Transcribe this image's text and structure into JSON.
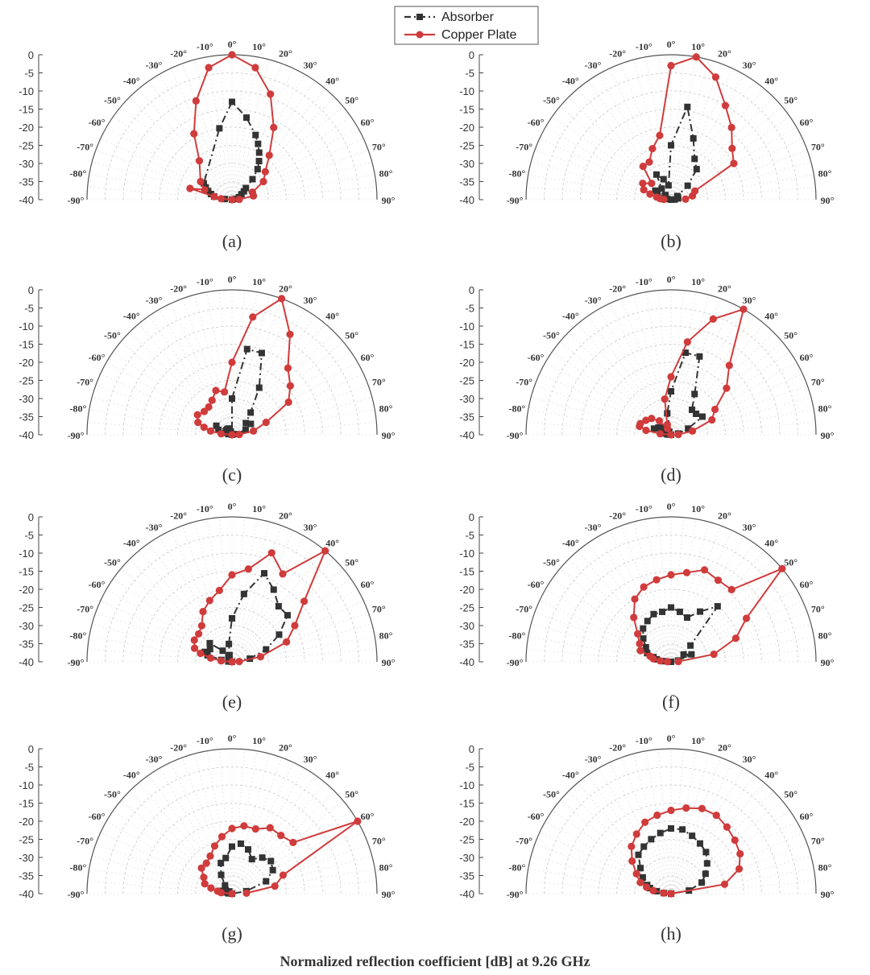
{
  "figure": {
    "caption": "Normalized reflection coefficient [dB] at 9.26 GHz"
  },
  "legend": {
    "items": [
      {
        "label": "Absorber",
        "color": "#333333",
        "marker": "square",
        "dash": "dashdot"
      },
      {
        "label": "Copper Plate",
        "color": "#d03b3b",
        "marker": "circle",
        "dash": "solid"
      }
    ]
  },
  "chart_data": {
    "type": "line",
    "coordinate_system": "polar",
    "theta_range_deg": [
      -90,
      90
    ],
    "theta_ticks": [
      -90,
      -80,
      -70,
      -60,
      -50,
      -40,
      -30,
      -20,
      -10,
      0,
      10,
      20,
      30,
      40,
      50,
      60,
      70,
      80,
      90
    ],
    "r_axis": {
      "min": -40,
      "max": 0,
      "ticks": [
        0,
        -5,
        -10,
        -15,
        -20,
        -25,
        -30,
        -35,
        -40
      ]
    },
    "grid": true,
    "legend_position": "top-center",
    "panels": [
      {
        "label": "(a)",
        "series": [
          {
            "name": "Absorber",
            "theta": [
              -85,
              -80,
              -75,
              -70,
              -65,
              -60,
              -10,
              0,
              10,
              20,
              25,
              30,
              35,
              40,
              45,
              50,
              55,
              60,
              70,
              80,
              85,
              90
            ],
            "values": [
              -38,
              -35,
              -34,
              -33,
              -32,
              -31,
              -20,
              -13,
              -17,
              -21,
              -23,
              -25,
              -27,
              -29,
              -32,
              -35,
              -36,
              -37,
              -38,
              -39,
              -40,
              -40
            ]
          },
          {
            "name": "Copper Plate",
            "theta": [
              -88,
              -85,
              -80,
              -75,
              -70,
              -60,
              -40,
              -30,
              -20,
              -10,
              0,
              10,
              20,
              30,
              40,
              50,
              60,
              70,
              80,
              88
            ],
            "values": [
              -40,
              -37,
              -35,
              -28,
              -32,
              -30,
              -26,
              -19,
              -11,
              -3,
              0,
              -3,
              -9,
              -17,
              -24,
              -28,
              -30,
              -34,
              -34,
              -38
            ]
          }
        ]
      },
      {
        "label": "(b)",
        "series": [
          {
            "name": "Absorber",
            "theta": [
              -88,
              -85,
              -80,
              -75,
              -70,
              -60,
              -50,
              -40,
              -30,
              -20,
              -10,
              0,
              10,
              20,
              30,
              40,
              50,
              60,
              70,
              80,
              88
            ],
            "values": [
              -40,
              -40,
              -39,
              -38,
              -36,
              -35,
              -38,
              -36,
              -32,
              -34,
              -36,
              -25,
              -14,
              -22,
              -27,
              -29,
              -34,
              -38,
              -38,
              -38,
              -39
            ]
          },
          {
            "name": "Copper Plate",
            "theta": [
              -88,
              -85,
              -80,
              -75,
              -70,
              -60,
              -50,
              -40,
              -30,
              -20,
              -10,
              0,
              10,
              20,
              30,
              40,
              50,
              60,
              70,
              80,
              88
            ],
            "values": [
              -38,
              -37,
              -36,
              -34,
              -32,
              -31,
              -33,
              -28,
              -28,
              -25,
              -22,
              -3,
              0,
              -4,
              -10,
              -14,
              -18,
              -20,
              -33,
              -34,
              -36
            ]
          }
        ]
      },
      {
        "label": "(c)",
        "series": [
          {
            "name": "Absorber",
            "theta": [
              -88,
              -85,
              -80,
              -75,
              -70,
              -60,
              -50,
              -40,
              -30,
              -20,
              -10,
              0,
              10,
              20,
              30,
              40,
              50,
              60,
              70,
              80,
              88
            ],
            "values": [
              -40,
              -40,
              -39,
              -38,
              -36,
              -35,
              -38,
              -38,
              -38,
              -39,
              -40,
              -30,
              -16,
              -16,
              -25,
              -32,
              -35,
              -34,
              -36,
              -39,
              -40
            ]
          },
          {
            "name": "Copper Plate",
            "theta": [
              -88,
              -85,
              -80,
              -75,
              -70,
              -60,
              -50,
              -40,
              -30,
              -20,
              -10,
              0,
              10,
              20,
              30,
              40,
              50,
              60,
              70,
              80,
              88
            ],
            "values": [
              -40,
              -37,
              -34,
              -32,
              -30,
              -29,
              -30,
              -30,
              -29,
              -27,
              -28,
              -20,
              -7,
              0,
              -8,
              -16,
              -19,
              -22,
              -30,
              -34,
              -38
            ]
          }
        ]
      },
      {
        "label": "(d)",
        "series": [
          {
            "name": "Absorber",
            "theta": [
              -88,
              -85,
              -80,
              -75,
              -70,
              -60,
              -50,
              -40,
              -30,
              -20,
              -10,
              0,
              10,
              20,
              30,
              40,
              50,
              60,
              70,
              80,
              88
            ],
            "values": [
              -40,
              -39,
              -38,
              -37,
              -35,
              -36,
              -37,
              -38,
              -39,
              -40,
              -34,
              -28,
              -17,
              -17,
              -27,
              -31,
              -31,
              -30,
              -35,
              -38,
              -40
            ]
          },
          {
            "name": "Copper Plate",
            "theta": [
              -88,
              -85,
              -80,
              -75,
              -70,
              -60,
              -50,
              -40,
              -30,
              -20,
              -10,
              0,
              10,
              20,
              30,
              40,
              50,
              60,
              70,
              80,
              88
            ],
            "values": [
              -40,
              -37,
              -33,
              -31,
              -31,
              -32,
              -33,
              -35,
              -38,
              -37,
              -30,
              -24,
              -14,
              -6,
              0,
              -15,
              -20,
              -26,
              -28,
              -34,
              -38
            ]
          }
        ]
      },
      {
        "label": "(e)",
        "series": [
          {
            "name": "Absorber",
            "theta": [
              -88,
              -85,
              -80,
              -75,
              -70,
              -60,
              -50,
              -40,
              -30,
              -20,
              -10,
              0,
              10,
              20,
              30,
              40,
              50,
              60,
              70,
              80,
              88
            ],
            "values": [
              -40,
              -39,
              -37,
              -33,
              -32,
              -33,
              -32,
              -36,
              -38,
              -38,
              -35,
              -28,
              -21,
              -14,
              -17,
              -20,
              -20,
              -25,
              -30,
              -35,
              -40
            ]
          },
          {
            "name": "Copper Plate",
            "theta": [
              -88,
              -85,
              -80,
              -75,
              -70,
              -60,
              -50,
              -40,
              -30,
              -20,
              -10,
              0,
              10,
              20,
              30,
              40,
              50,
              60,
              70,
              80,
              88
            ],
            "values": [
              -40,
              -37,
              -34,
              -31,
              -29,
              -28,
              -28,
              -27,
              -24,
              -22,
              -20,
              -16,
              -14,
              -8,
              -12,
              0,
              -14,
              -20,
              -24,
              -32,
              -38
            ]
          }
        ]
      },
      {
        "label": "(f)",
        "series": [
          {
            "name": "Absorber",
            "theta": [
              -88,
              -85,
              -80,
              -75,
              -70,
              -60,
              -50,
              -40,
              -30,
              -20,
              -10,
              0,
              10,
              20,
              30,
              40,
              50,
              60,
              70,
              80,
              88
            ],
            "values": [
              -40,
              -38,
              -36,
              -35,
              -33,
              -32,
              -30,
              -28,
              -27,
              -26,
              -26,
              -25,
              -26,
              -27,
              -24,
              -20,
              -33,
              -36,
              -34,
              -38,
              -40
            ]
          },
          {
            "name": "Copper Plate",
            "theta": [
              -88,
              -85,
              -80,
              -75,
              -70,
              -60,
              -50,
              -40,
              -30,
              -20,
              -10,
              0,
              10,
              20,
              30,
              40,
              50,
              60,
              70,
              80,
              88
            ],
            "values": [
              -39,
              -37,
              -35,
              -34,
              -31,
              -30,
              -28,
              -24,
              -20,
              -18,
              -17,
              -16,
              -15,
              -13,
              -14,
              -14,
              0,
              -16,
              -21,
              -28,
              -38
            ]
          }
        ]
      },
      {
        "label": "(g)",
        "series": [
          {
            "name": "Absorber",
            "theta": [
              -88,
              -85,
              -80,
              -75,
              -70,
              -60,
              -50,
              -40,
              -30,
              -20,
              -10,
              0,
              10,
              20,
              30,
              40,
              50,
              60,
              70,
              80,
              88
            ],
            "values": [
              -40,
              -39,
              -38,
              -37,
              -38,
              -38,
              -39,
              -37,
              -34,
              -31,
              -30,
              -27,
              -26,
              -27,
              -29,
              -27,
              -26,
              -27,
              -30,
              -36,
              -40
            ]
          },
          {
            "name": "Copper Plate",
            "theta": [
              -88,
              -85,
              -80,
              -75,
              -70,
              -60,
              -50,
              -40,
              -30,
              -20,
              -10,
              0,
              10,
              20,
              30,
              40,
              50,
              60,
              70,
              80,
              88
            ],
            "values": [
              -40,
              -37,
              -36,
              -34,
              -32,
              -31,
              -29,
              -29,
              -28,
              -26,
              -24,
              -22,
              -21,
              -21,
              -19,
              -19,
              -18,
              0,
              -25,
              -28,
              -36
            ]
          }
        ]
      },
      {
        "label": "(h)",
        "series": [
          {
            "name": "Absorber",
            "theta": [
              -88,
              -85,
              -80,
              -75,
              -70,
              -60,
              -50,
              -40,
              -30,
              -20,
              -10,
              0,
              10,
              20,
              30,
              40,
              50,
              60,
              70,
              80,
              88
            ],
            "values": [
              -40,
              -38,
              -36,
              -34,
              -33,
              -31,
              -29,
              -26,
              -25,
              -24,
              -23,
              -22,
              -22,
              -23,
              -24,
              -25,
              -27,
              -29,
              -31,
              -35,
              -40
            ]
          },
          {
            "name": "Copper Plate",
            "theta": [
              -88,
              -85,
              -80,
              -75,
              -70,
              -60,
              -50,
              -40,
              -30,
              -20,
              -10,
              0,
              10,
              20,
              30,
              40,
              50,
              60,
              70,
              80,
              88
            ],
            "values": [
              -40,
              -38,
              -35,
              -33,
              -31,
              -29,
              -26,
              -23,
              -21,
              -19,
              -18,
              -17,
              -16,
              -15,
              -15,
              -16,
              -17,
              -18,
              -20,
              -25,
              -40
            ]
          }
        ]
      }
    ]
  }
}
